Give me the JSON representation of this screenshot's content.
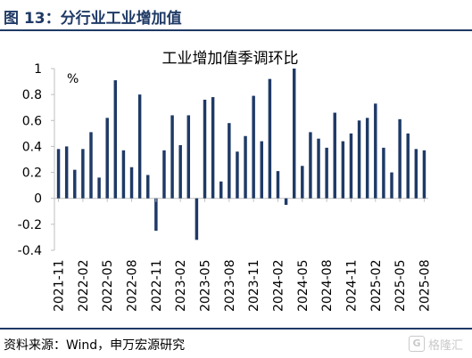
{
  "figure": {
    "title": "图 13：分行业工业增加值",
    "source": "资料来源：Wind，申万宏源研究",
    "watermark_text": "格隆汇",
    "watermark_icon": "G"
  },
  "colors": {
    "bar": "#1f3a66",
    "rule": "#1f3a66",
    "axis": "#bfbfbf",
    "text": "#000000"
  },
  "chart_data": {
    "type": "bar",
    "title": "工业增加值季调环比",
    "ylabel": "%",
    "ylim": [
      -0.4,
      1.0
    ],
    "yticks": [
      -0.4,
      -0.2,
      0,
      0.2,
      0.4,
      0.6,
      0.8,
      1
    ],
    "ytick_labels": [
      "-0.4",
      "-0.2",
      "0",
      "0.2",
      "0.4",
      "0.6",
      "0.8",
      "1"
    ],
    "grid": false,
    "x_tick_labels": [
      "2021-11",
      "2022-02",
      "2022-05",
      "2022-08",
      "2022-11",
      "2023-02",
      "2023-05",
      "2023-08",
      "2023-11",
      "2024-02",
      "2024-05",
      "2024-08",
      "2024-11",
      "2025-02",
      "2025-05",
      "2025-08"
    ],
    "categories": [
      "2021-11",
      "2021-12",
      "2022-01",
      "2022-02",
      "2022-03",
      "2022-04",
      "2022-05",
      "2022-06",
      "2022-07",
      "2022-08",
      "2022-09",
      "2022-10",
      "2022-11",
      "2022-12",
      "2023-01",
      "2023-02",
      "2023-03",
      "2023-04",
      "2023-05",
      "2023-06",
      "2023-07",
      "2023-08",
      "2023-09",
      "2023-10",
      "2023-11",
      "2023-12",
      "2024-01",
      "2024-02",
      "2024-03",
      "2024-04",
      "2024-05",
      "2024-06",
      "2024-07",
      "2024-08",
      "2024-09",
      "2024-10",
      "2024-11",
      "2024-12",
      "2025-01",
      "2025-02",
      "2025-03",
      "2025-04",
      "2025-05",
      "2025-06",
      "2025-07",
      "2025-08"
    ],
    "values": [
      0.38,
      0.4,
      0.22,
      0.38,
      0.51,
      0.16,
      0.62,
      0.91,
      0.37,
      0.24,
      0.8,
      0.18,
      -0.25,
      0.37,
      0.64,
      0.41,
      0.64,
      -0.32,
      0.76,
      0.78,
      0.13,
      0.58,
      0.36,
      0.48,
      0.79,
      0.44,
      0.92,
      0.21,
      -0.05,
      1.0,
      0.25,
      0.51,
      0.46,
      0.39,
      0.66,
      0.44,
      0.5,
      0.6,
      0.62,
      0.73,
      0.39,
      0.2,
      0.61,
      0.5,
      0.38,
      0.37
    ]
  }
}
